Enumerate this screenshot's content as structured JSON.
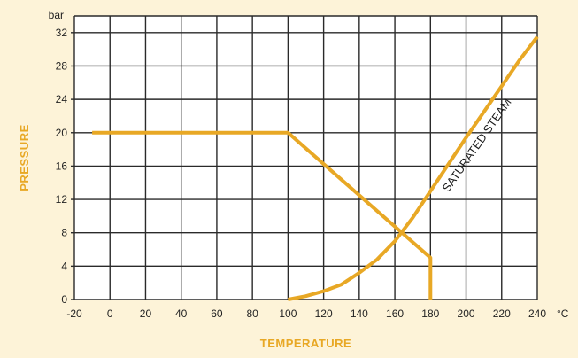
{
  "chart_data": {
    "type": "line",
    "title": "",
    "xlabel": "TEMPERATURE",
    "ylabel": "PRESSURE",
    "x_unit": "°C",
    "y_unit": "bar",
    "xlim": [
      -20,
      240
    ],
    "ylim": [
      0,
      34
    ],
    "x_ticks": [
      -20,
      0,
      20,
      40,
      60,
      80,
      100,
      120,
      140,
      160,
      180,
      200,
      220,
      240
    ],
    "y_ticks": [
      0,
      4,
      8,
      12,
      16,
      20,
      24,
      28,
      32
    ],
    "grid": true,
    "series": [
      {
        "name": "",
        "points": [
          [
            -10,
            20
          ],
          [
            100,
            20
          ],
          [
            180,
            5
          ],
          [
            180,
            0
          ]
        ]
      },
      {
        "name": "SATURATED STEAM",
        "points": [
          [
            100,
            0
          ],
          [
            110,
            0.4
          ],
          [
            120,
            1
          ],
          [
            130,
            1.8
          ],
          [
            140,
            3.2
          ],
          [
            150,
            4.8
          ],
          [
            160,
            7
          ],
          [
            170,
            9.8
          ],
          [
            180,
            13
          ],
          [
            190,
            16.2
          ],
          [
            200,
            19.4
          ],
          [
            210,
            22.5
          ],
          [
            220,
            25.6
          ],
          [
            230,
            28.7
          ],
          [
            240,
            31.5
          ]
        ]
      }
    ],
    "annotations": [
      {
        "text": "SATURATED STEAM",
        "x": 190,
        "y": 12.8
      }
    ],
    "colors": {
      "line": "#e8a825",
      "axis_title": "#e8a825",
      "grid": "#2a2a2a",
      "background": "#fdf3d8",
      "plot_background": "#ffffff"
    }
  }
}
